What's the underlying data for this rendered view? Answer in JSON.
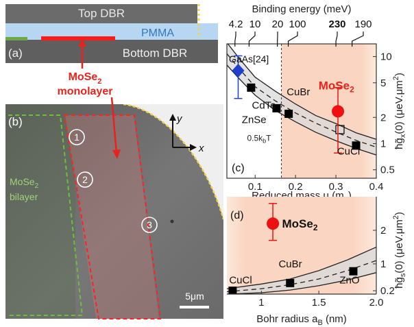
{
  "panel_a": {
    "label": "(a)",
    "top_dbr": "Top DBR",
    "pmma": "PMMA",
    "bottom_dbr": "Bottom DBR",
    "mose2_label_line1": "MoSe",
    "mose2_label_sub": "2",
    "mose2_label_line2": "monolayer",
    "colors": {
      "dbr": "#6b6b6b",
      "pmma": "#b6d6f2",
      "mose2": "#ff1a1a",
      "bilayer": "#6ca84a",
      "annot": "#e8231c"
    }
  },
  "panel_b": {
    "label": "(b)",
    "bilayer_line1": "MoSe",
    "bilayer_sub": "2",
    "bilayer_line2": "bilayer",
    "region_1": "1",
    "region_2": "2",
    "region_3": "3",
    "axis_y": "y",
    "axis_x": "x",
    "scale_bar": "5μm",
    "colors": {
      "bilayer_outline": "#6cbf3a",
      "monolayer_outline": "#ff2222",
      "edge": "#f2d24a"
    }
  },
  "chart_data": [
    {
      "type": "scatter",
      "panel_label": "(c)",
      "xlabel": "Reduced mass μ (m",
      "xlabel_sub": "e",
      "xlabel_end": ")",
      "ylabel": "ħg̃",
      "ylabel_sub": "x",
      "ylabel_end": "(0) (μeV.μm",
      "ylabel_sup": "2",
      "ylabel_close": ")",
      "xlim": [
        0.03,
        0.4
      ],
      "ylim": [
        0.4,
        14
      ],
      "y_scale": "log",
      "x_ticks": [
        0.1,
        0.2,
        0.3,
        0.4
      ],
      "x_tick_labels": [
        "0.1",
        "0.2",
        "0.3",
        "0.4"
      ],
      "y_ticks": [
        0.5,
        1,
        2,
        5,
        10
      ],
      "y_tick_labels": [
        "0.5",
        "1",
        "2",
        "5",
        "10"
      ],
      "top_axis_title": "Binding energy (meV)",
      "top_ticks": [
        {
          "label": "4.2",
          "x": 0.05,
          "bold": false
        },
        {
          "label": "10",
          "x": 0.085,
          "bold": false
        },
        {
          "label": "20",
          "x": 0.155,
          "bold": false
        },
        {
          "label": "100",
          "x": 0.182,
          "bold": false
        },
        {
          "label": "230",
          "x": 0.3,
          "bold": true
        },
        {
          "label": "190",
          "x": 0.34,
          "bold": false
        }
      ],
      "threshold_x": 0.165,
      "threshold_label": "0.5k",
      "threshold_label_sub": "b",
      "threshold_label_end": "T",
      "band_upper": [
        [
          0.03,
          14.5
        ],
        [
          0.06,
          9.6
        ],
        [
          0.1,
          5.8
        ],
        [
          0.15,
          4.0
        ],
        [
          0.2,
          2.85
        ],
        [
          0.25,
          2.1
        ],
        [
          0.3,
          1.7
        ],
        [
          0.35,
          1.33
        ],
        [
          0.4,
          1.12
        ]
      ],
      "band_lower": [
        [
          0.03,
          8.0
        ],
        [
          0.06,
          5.6
        ],
        [
          0.1,
          3.6
        ],
        [
          0.15,
          2.4
        ],
        [
          0.2,
          1.78
        ],
        [
          0.25,
          1.35
        ],
        [
          0.3,
          1.08
        ],
        [
          0.35,
          0.88
        ],
        [
          0.4,
          0.74
        ]
      ],
      "dashed_fit": [
        [
          0.03,
          10.8
        ],
        [
          0.06,
          7.3
        ],
        [
          0.1,
          4.5
        ],
        [
          0.15,
          3.1
        ],
        [
          0.2,
          2.25
        ],
        [
          0.25,
          1.72
        ],
        [
          0.3,
          1.36
        ],
        [
          0.35,
          1.09
        ],
        [
          0.4,
          0.91
        ]
      ],
      "points": [
        {
          "name": "GaAs[24]",
          "x": 0.058,
          "y": 6.9,
          "err": [
            3.3,
            10.2
          ],
          "marker": "diamond",
          "color": "#1f3fcc"
        },
        {
          "name": "CdTe",
          "x": 0.09,
          "y": 4.4,
          "marker": "square",
          "color": "#000000"
        },
        {
          "name": "ZnSe",
          "x": 0.153,
          "y": 2.55,
          "marker": "square",
          "color": "#000000"
        },
        {
          "name": "CuBr",
          "x": 0.183,
          "y": 2.2,
          "marker": "square",
          "color": "#000000"
        },
        {
          "name": "CuCl",
          "x": 0.35,
          "y": 0.95,
          "marker": "square",
          "color": "#000000"
        },
        {
          "name": "MoSe2 open",
          "x": 0.31,
          "y": 1.45,
          "marker": "open-square",
          "color": "#000000"
        },
        {
          "name": "MoSe2",
          "x": 0.305,
          "y": 2.35,
          "err": [
            0.78,
            4.4
          ],
          "marker": "circle",
          "color": "#ee1111"
        }
      ],
      "point_labels": {
        "cdte": "CdTe",
        "znse": "ZnSe",
        "cubr": "CuBr",
        "cucl": "CuCl",
        "gaas": "GaAs[24]",
        "mose2": "MoSe",
        "mose2_sub": "2"
      },
      "shade_color": "#fad6c2"
    },
    {
      "type": "scatter",
      "panel_label": "(d)",
      "xlabel": "Bohr radius a",
      "xlabel_sub": "B",
      "xlabel_end": " (nm)",
      "ylabel": "ħg̃",
      "ylabel_sub": "s",
      "ylabel_end": "(0) (μeV.μm",
      "ylabel_sup": "2",
      "ylabel_close": ")",
      "xlim": [
        0.7,
        2.0
      ],
      "ylim": [
        0.1,
        3.0
      ],
      "y_scale": "linear",
      "x_ticks": [
        1.0,
        1.5,
        2.0
      ],
      "x_tick_labels": [
        "1",
        "1.5",
        "2.0"
      ],
      "y_ticks": [
        0.2,
        1,
        2
      ],
      "y_tick_labels": [
        "0.2",
        "1",
        "2"
      ],
      "band_upper": [
        [
          0.7,
          0.26
        ],
        [
          1.0,
          0.4
        ],
        [
          1.25,
          0.55
        ],
        [
          1.5,
          0.8
        ],
        [
          1.75,
          1.12
        ],
        [
          2.0,
          1.5
        ]
      ],
      "band_lower": [
        [
          0.7,
          0.1
        ],
        [
          1.0,
          0.14
        ],
        [
          1.25,
          0.22
        ],
        [
          1.5,
          0.35
        ],
        [
          1.75,
          0.52
        ],
        [
          2.0,
          0.74
        ]
      ],
      "dashed_fit": [
        [
          0.7,
          0.17
        ],
        [
          1.0,
          0.26
        ],
        [
          1.25,
          0.38
        ],
        [
          1.5,
          0.55
        ],
        [
          1.75,
          0.8
        ],
        [
          2.0,
          1.1
        ]
      ],
      "points": [
        {
          "name": "CuCl",
          "x": 0.75,
          "y": 0.2,
          "marker": "square",
          "color": "#000000"
        },
        {
          "name": "CuBr",
          "x": 1.25,
          "y": 0.43,
          "marker": "square",
          "color": "#000000"
        },
        {
          "name": "ZnO",
          "x": 1.8,
          "y": 0.78,
          "marker": "square",
          "color": "#000000"
        },
        {
          "name": "MoSe2",
          "x": 1.1,
          "y": 2.2,
          "err": [
            1.7,
            2.8
          ],
          "marker": "circle",
          "color": "#ee1111"
        }
      ],
      "point_labels": {
        "cucl": "CuCl",
        "cubr": "CuBr",
        "zno": "ZnO",
        "mose2": "MoSe",
        "mose2_sub": "2"
      },
      "shade_color": "#fad6c2"
    }
  ]
}
